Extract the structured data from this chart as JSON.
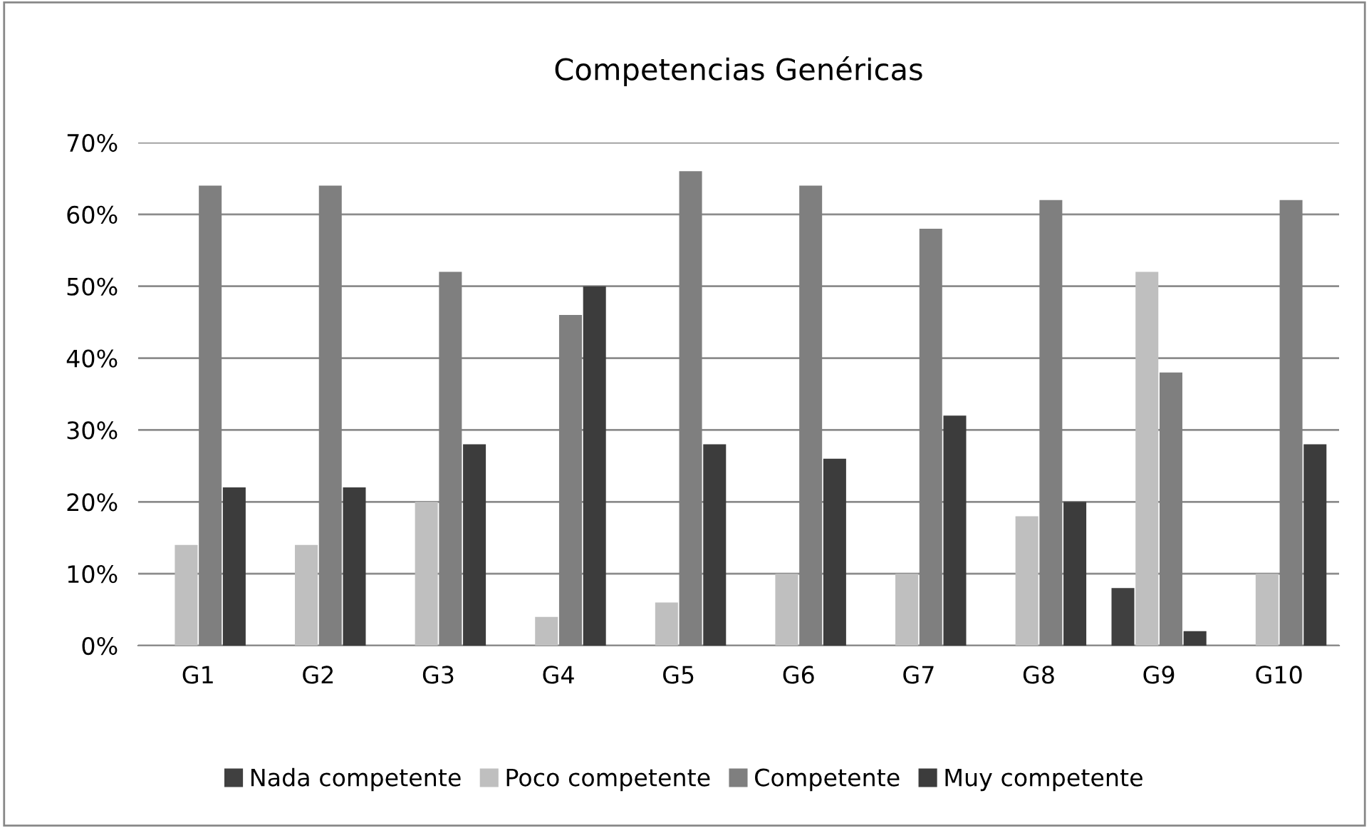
{
  "chart_data": {
    "type": "bar",
    "title": "Competencias Genéricas",
    "categories": [
      "G1",
      "G2",
      "G3",
      "G4",
      "G5",
      "G6",
      "G7",
      "G8",
      "G9",
      "G10"
    ],
    "series": [
      {
        "name": "Nada competente",
        "color": "#404040",
        "values": [
          0,
          0,
          0,
          0,
          0,
          0,
          0,
          0,
          8,
          0
        ]
      },
      {
        "name": "Poco competente",
        "color": "#bfbfbf",
        "values": [
          14,
          14,
          20,
          4,
          6,
          10,
          10,
          18,
          52,
          10
        ]
      },
      {
        "name": "Competente",
        "color": "#7f7f7f",
        "values": [
          64,
          64,
          52,
          46,
          66,
          64,
          58,
          62,
          38,
          62
        ]
      },
      {
        "name": "Muy competente",
        "color": "#3c3c3c",
        "values": [
          22,
          22,
          28,
          50,
          28,
          26,
          32,
          20,
          2,
          28
        ]
      }
    ],
    "ylim": [
      0,
      70
    ],
    "yticks": [
      {
        "value": 0,
        "label": "0%"
      },
      {
        "value": 10,
        "label": "10%"
      },
      {
        "value": 20,
        "label": "20%"
      },
      {
        "value": 30,
        "label": "30%"
      },
      {
        "value": 40,
        "label": "40%"
      },
      {
        "value": 50,
        "label": "50%"
      },
      {
        "value": 60,
        "label": "60%"
      },
      {
        "value": 70,
        "label": "70%"
      }
    ],
    "grid": "y",
    "legend": "bottom"
  }
}
